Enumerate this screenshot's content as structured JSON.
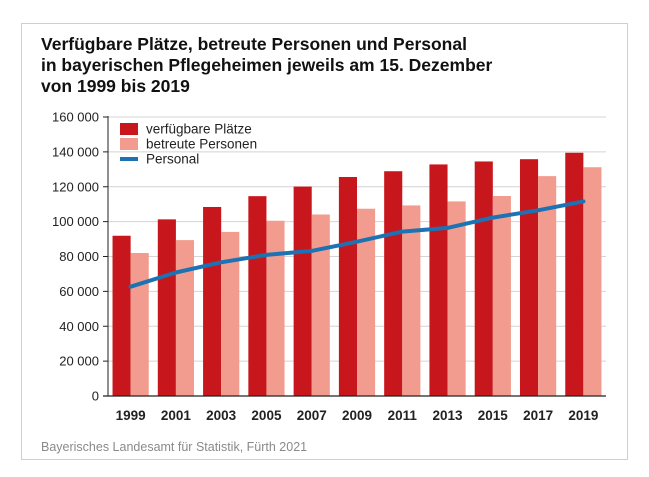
{
  "chart_data": {
    "type": "bar",
    "title_lines": [
      "Verfügbare Plätze, betreute Personen und Personal",
      "in bayerischen Pflegeheimen jeweils am 15. Dezember",
      "von 1999 bis 2019"
    ],
    "categories": [
      "1999",
      "2001",
      "2003",
      "2005",
      "2007",
      "2009",
      "2011",
      "2013",
      "2015",
      "2017",
      "2019"
    ],
    "series": [
      {
        "name": "verfügbare Plätze",
        "kind": "bar",
        "color": "#c8161d",
        "values": [
          91900,
          101300,
          108400,
          114600,
          120100,
          125600,
          128900,
          132800,
          134500,
          135800,
          139500
        ]
      },
      {
        "name": "betreute Personen",
        "kind": "bar",
        "color": "#f29c8f",
        "values": [
          82000,
          89400,
          94100,
          100500,
          104100,
          107400,
          109300,
          111600,
          114700,
          126100,
          131200
        ]
      },
      {
        "name": "Personal",
        "kind": "line",
        "color": "#1d72b3",
        "values": [
          62700,
          70800,
          76700,
          80900,
          83200,
          88500,
          94300,
          96400,
          102300,
          106500,
          111600
        ]
      }
    ],
    "yticks": [
      0,
      20000,
      40000,
      60000,
      80000,
      100000,
      120000,
      140000,
      160000
    ],
    "ytick_labels": [
      "0",
      "20 000",
      "40 000",
      "60 000",
      "80 000",
      "100 000",
      "120 000",
      "140 000",
      "160 000"
    ],
    "ylim": [
      0,
      160000
    ],
    "xlabel": "",
    "ylabel": "",
    "grid": true,
    "legend_position": "top-left"
  },
  "source_text": "Bayerisches Landesamt für Statistik, Fürth 2021"
}
